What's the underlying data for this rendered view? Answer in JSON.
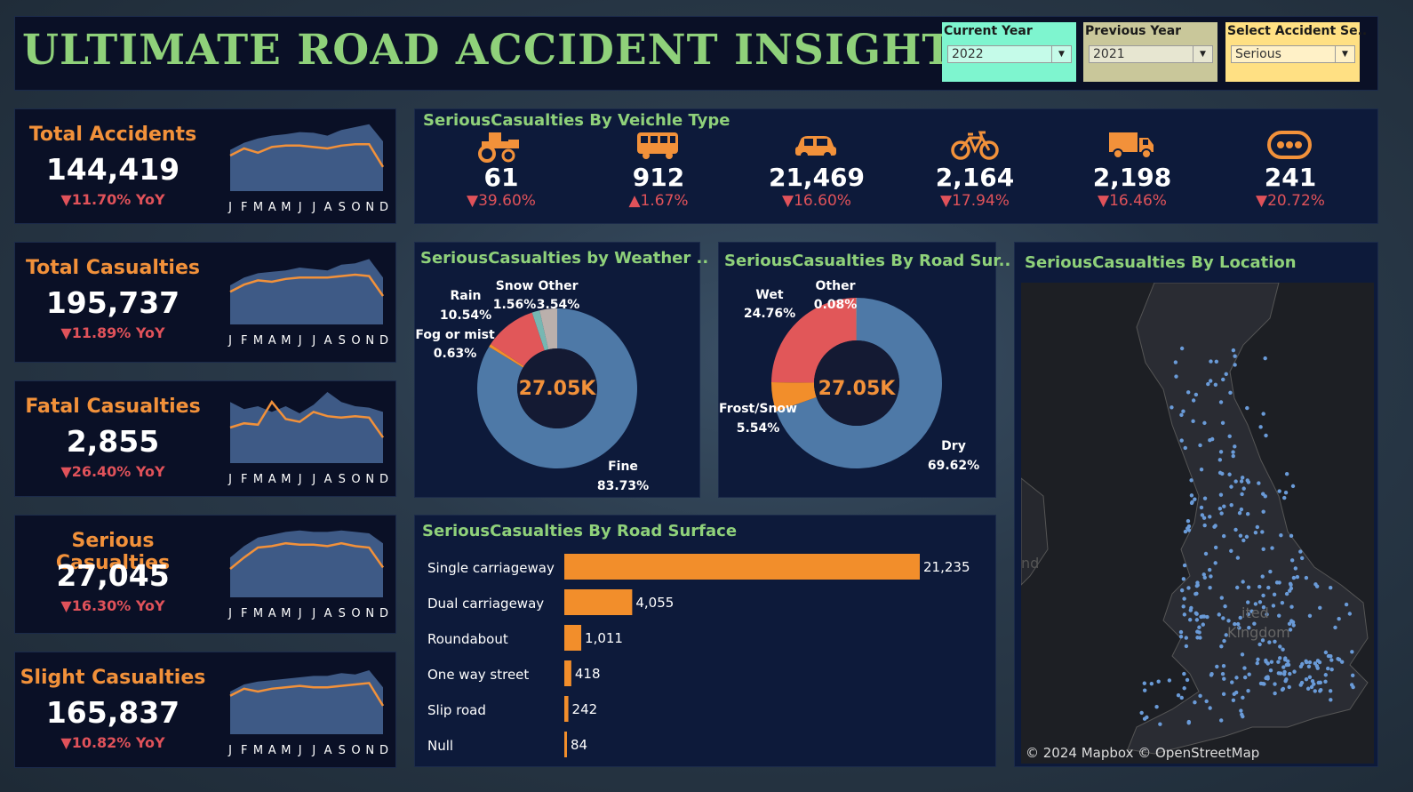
{
  "header": {
    "title": "ULTIMATE ROAD ACCIDENT INSIGHTS",
    "filters": [
      {
        "label": "Current Year",
        "value": "2022",
        "color": "#7ef5cf"
      },
      {
        "label": "Previous Year",
        "value": "2021",
        "color": "#c9c79a"
      },
      {
        "label": "Select Accident Se..",
        "value": "Serious",
        "color": "#ffe083"
      }
    ]
  },
  "kpis": [
    {
      "label": "Total Accidents",
      "value": "144,419",
      "yoy": "▼11.70% YoY"
    },
    {
      "label": "Total Casualties",
      "value": "195,737",
      "yoy": "▼11.89% YoY"
    },
    {
      "label": "Fatal Casualties",
      "value": "2,855",
      "yoy": "▼26.40% YoY"
    },
    {
      "label": "Serious Casualties",
      "value": "27,045",
      "yoy": "▼16.30% YoY"
    },
    {
      "label": "Slight Casualties",
      "value": "165,837",
      "yoy": "▼10.82% YoY"
    }
  ],
  "months": [
    "J",
    "F",
    "M",
    "A",
    "M",
    "J",
    "J",
    "A",
    "S",
    "O",
    "N",
    "D"
  ],
  "vehicle_panel": {
    "title": "SeriousCasualties By Veichle Type",
    "items": [
      {
        "icon": "tractor-icon",
        "value": "61",
        "yoy": "▼39.60%"
      },
      {
        "icon": "bus-icon",
        "value": "912",
        "yoy": "▲1.67%"
      },
      {
        "icon": "car-icon",
        "value": "21,469",
        "yoy": "▼16.60%"
      },
      {
        "icon": "bicycle-icon",
        "value": "2,164",
        "yoy": "▼17.94%"
      },
      {
        "icon": "truck-icon",
        "value": "2,198",
        "yoy": "▼16.46%"
      },
      {
        "icon": "other-vehicle-icon",
        "value": "241",
        "yoy": "▼20.72%"
      }
    ]
  },
  "weather_panel": {
    "title": "SeriousCasualties by Weather ..",
    "center": "27.05K"
  },
  "road_surface_donut_panel": {
    "title": "SeriousCasualties By Road Sur..",
    "center": "27.05K"
  },
  "road_type_panel": {
    "title": "SeriousCasualties By Road Surface"
  },
  "location_panel": {
    "title": "SeriousCasualties By Location",
    "attribution": "© 2024 Mapbox © OpenStreetMap",
    "map_label_1": "nd",
    "map_label_2": "ited",
    "map_label_3": "Kingdom"
  },
  "chart_data": [
    {
      "type": "pie",
      "name": "weather",
      "categories": [
        "Fine",
        "Fog or mist",
        "Rain",
        "Snow",
        "Other"
      ],
      "values": [
        83.73,
        0.63,
        10.54,
        1.56,
        3.54
      ],
      "labels": [
        "83.73%",
        "0.63%",
        "10.54%",
        "1.56%",
        "3.54%"
      ],
      "colors": [
        "#4e79a7",
        "#f28e2b",
        "#e15759",
        "#76b7b2",
        "#bab0ac"
      ]
    },
    {
      "type": "pie",
      "name": "road_surface",
      "categories": [
        "Dry",
        "Frost/Snow",
        "Wet",
        "Other"
      ],
      "values": [
        69.62,
        5.54,
        24.76,
        0.08
      ],
      "labels": [
        "69.62%",
        "5.54%",
        "24.76%",
        "0.08%"
      ],
      "colors": [
        "#4e79a7",
        "#f28e2b",
        "#e15759",
        "#76b7b2"
      ]
    },
    {
      "type": "bar",
      "name": "road_type",
      "categories": [
        "Single carriageway",
        "Dual carriageway",
        "Roundabout",
        "One way street",
        "Slip road",
        "Null"
      ],
      "values": [
        21235,
        4055,
        1011,
        418,
        242,
        84
      ],
      "value_labels": [
        "21,235",
        "4,055",
        "1,011",
        "418",
        "242",
        "84"
      ],
      "color": "#f28e2b"
    },
    {
      "type": "area",
      "name": "total_accidents_trend",
      "x": [
        "J",
        "F",
        "M",
        "A",
        "M",
        "J",
        "J",
        "A",
        "S",
        "O",
        "N",
        "D"
      ],
      "series": [
        {
          "values": [
            0.58,
            0.68,
            0.74,
            0.78,
            0.8,
            0.83,
            0.82,
            0.78,
            0.86,
            0.9,
            0.94,
            0.7
          ]
        },
        {
          "values": [
            0.5,
            0.6,
            0.54,
            0.62,
            0.64,
            0.64,
            0.62,
            0.6,
            0.64,
            0.66,
            0.66,
            0.34
          ]
        }
      ]
    },
    {
      "type": "area",
      "name": "total_casualties_trend",
      "x": [
        "J",
        "F",
        "M",
        "A",
        "M",
        "J",
        "J",
        "A",
        "S",
        "O",
        "N",
        "D"
      ],
      "series": [
        {
          "values": [
            0.55,
            0.66,
            0.72,
            0.74,
            0.76,
            0.8,
            0.78,
            0.76,
            0.84,
            0.86,
            0.92,
            0.66
          ]
        },
        {
          "values": [
            0.46,
            0.56,
            0.62,
            0.6,
            0.64,
            0.66,
            0.66,
            0.66,
            0.68,
            0.7,
            0.68,
            0.4
          ]
        }
      ]
    },
    {
      "type": "area",
      "name": "fatal_casualties_trend",
      "x": [
        "J",
        "F",
        "M",
        "A",
        "M",
        "J",
        "J",
        "A",
        "S",
        "O",
        "N",
        "D"
      ],
      "series": [
        {
          "values": [
            0.86,
            0.76,
            0.8,
            0.72,
            0.8,
            0.7,
            0.82,
            1.0,
            0.86,
            0.8,
            0.78,
            0.72
          ]
        },
        {
          "values": [
            0.5,
            0.56,
            0.54,
            0.86,
            0.62,
            0.58,
            0.72,
            0.66,
            0.64,
            0.66,
            0.64,
            0.36
          ]
        }
      ]
    },
    {
      "type": "area",
      "name": "serious_casualties_trend",
      "x": [
        "J",
        "F",
        "M",
        "A",
        "M",
        "J",
        "J",
        "A",
        "S",
        "O",
        "N",
        "D"
      ],
      "series": [
        {
          "values": [
            0.56,
            0.72,
            0.84,
            0.88,
            0.92,
            0.94,
            0.92,
            0.92,
            0.94,
            0.92,
            0.9,
            0.76
          ]
        },
        {
          "values": [
            0.4,
            0.56,
            0.7,
            0.72,
            0.76,
            0.74,
            0.74,
            0.72,
            0.76,
            0.72,
            0.7,
            0.42
          ]
        }
      ]
    },
    {
      "type": "area",
      "name": "slight_casualties_trend",
      "x": [
        "J",
        "F",
        "M",
        "A",
        "M",
        "J",
        "J",
        "A",
        "S",
        "O",
        "N",
        "D"
      ],
      "series": [
        {
          "values": [
            0.6,
            0.7,
            0.74,
            0.76,
            0.78,
            0.8,
            0.82,
            0.82,
            0.86,
            0.84,
            0.9,
            0.66
          ]
        },
        {
          "values": [
            0.54,
            0.64,
            0.6,
            0.64,
            0.66,
            0.68,
            0.66,
            0.66,
            0.68,
            0.7,
            0.72,
            0.4
          ]
        }
      ]
    }
  ]
}
